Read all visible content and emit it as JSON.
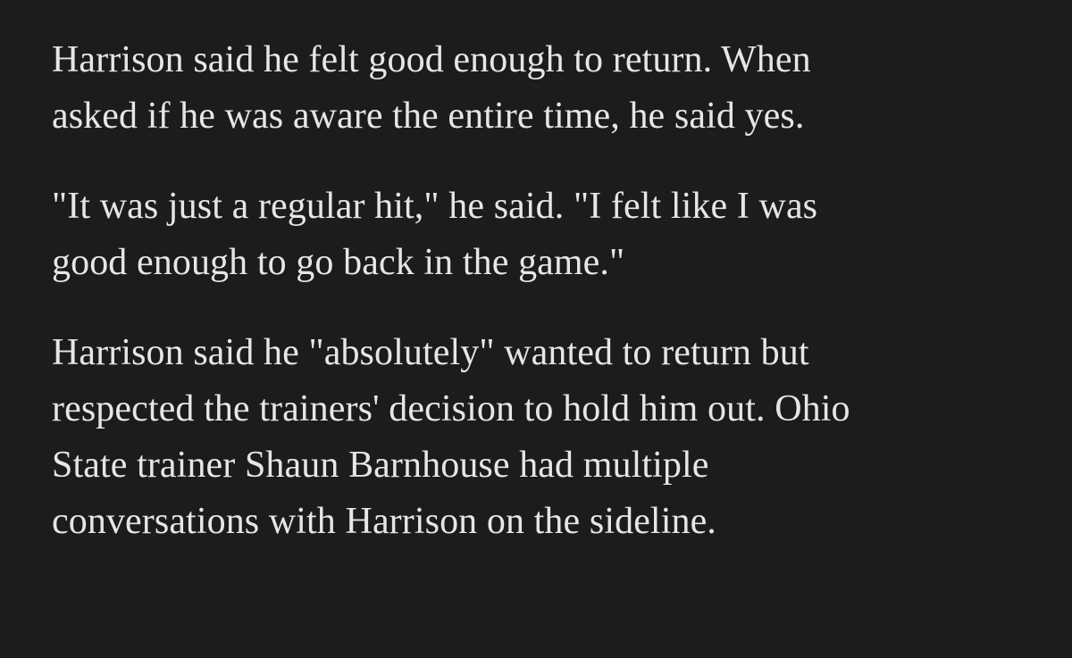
{
  "article": {
    "paragraphs": [
      {
        "lines": [
          "Harrison said he felt good enough to return. When",
          "asked if he was aware the entire time, he said yes."
        ]
      },
      {
        "lines": [
          "\"It was just a regular hit,\" he said. \"I felt like I was",
          "good enough to go back in the game.\""
        ]
      },
      {
        "lines": [
          "Harrison said he \"absolutely\" wanted to return but",
          "respected the trainers' decision to hold him out. Ohio",
          "State trainer Shaun Barnhouse had multiple",
          "conversations with Harrison on the sideline."
        ]
      }
    ]
  },
  "colors": {
    "background": "#1c1c1e",
    "text": "#e6e6e6"
  }
}
